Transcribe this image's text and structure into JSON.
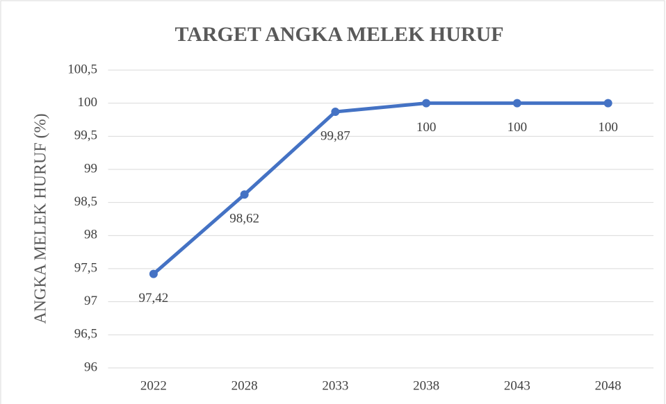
{
  "chart_data": {
    "type": "line",
    "title": "TARGET ANGKA MELEK HURUF",
    "y_label": "ANGKA MELEK HURUF (%)",
    "categories": [
      "2022",
      "2028",
      "2033",
      "2038",
      "2043",
      "2048"
    ],
    "values": [
      97.42,
      98.62,
      99.87,
      100,
      100,
      100
    ],
    "value_labels": [
      "97,42",
      "98,62",
      "99,87",
      "100",
      "100",
      "100"
    ],
    "color": "#4472c4",
    "ylim": [
      96,
      100.5
    ],
    "yticks": [
      96,
      {
        "value": 96.5,
        "label": "96,5"
      },
      97,
      {
        "value": 97.5,
        "label": "97,5"
      },
      98,
      {
        "value": 98.5,
        "label": "98,5"
      },
      99,
      {
        "value": 99.5,
        "label": "99,5"
      },
      100,
      {
        "value": 100.5,
        "label": "100,5"
      }
    ],
    "grid": true
  }
}
